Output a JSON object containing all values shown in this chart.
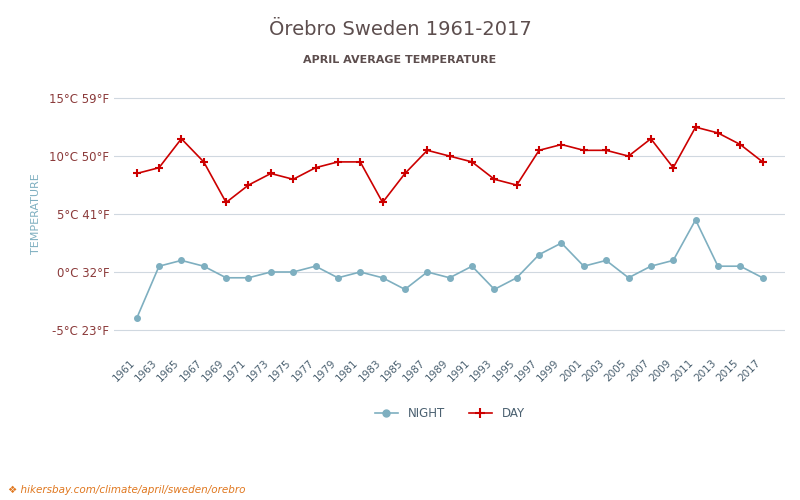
{
  "title": "Örebro Sweden 1961-2017",
  "subtitle": "APRIL AVERAGE TEMPERATURE",
  "ylabel": "TEMPERATURE",
  "xlabel_url": "hikersbay.com/climate/april/sweden/orebro",
  "years": [
    1961,
    1963,
    1965,
    1967,
    1969,
    1971,
    1973,
    1975,
    1977,
    1979,
    1981,
    1983,
    1985,
    1987,
    1989,
    1991,
    1993,
    1995,
    1997,
    1999,
    2001,
    2003,
    2005,
    2007,
    2009,
    2011,
    2013,
    2015,
    2017
  ],
  "day_temps": [
    8.5,
    9.0,
    11.5,
    9.5,
    6.0,
    7.5,
    8.5,
    8.0,
    9.0,
    9.5,
    9.5,
    6.0,
    8.5,
    10.5,
    10.0,
    9.5,
    8.0,
    7.5,
    10.5,
    11.0,
    10.5,
    10.5,
    10.0,
    11.5,
    9.0,
    12.5,
    12.0,
    11.0,
    9.5
  ],
  "night_temps": [
    -4.0,
    0.5,
    1.0,
    0.5,
    -0.5,
    -0.5,
    0.0,
    0.0,
    0.5,
    -0.5,
    0.0,
    -0.5,
    -1.5,
    0.0,
    -0.5,
    0.5,
    -1.5,
    -0.5,
    1.5,
    2.5,
    0.5,
    1.0,
    -0.5,
    0.5,
    1.0,
    4.5,
    0.5,
    0.5,
    -0.5
  ],
  "day_color": "#cc0000",
  "night_color": "#7eafc0",
  "title_color": "#5d4e4e",
  "subtitle_color": "#5d4e4e",
  "ylabel_color": "#7eafc0",
  "tick_label_color": "#8b3a3a",
  "grid_color": "#d0d8e0",
  "background_color": "#ffffff",
  "ylim": [
    -7,
    17
  ],
  "yticks": [
    -5,
    0,
    5,
    10,
    15
  ],
  "ytick_labels": [
    "-5°C 23°F",
    "0°C 32°F",
    "5°C 41°F",
    "10°C 50°F",
    "15°C 59°F"
  ],
  "legend_night": "NIGHT",
  "legend_day": "DAY"
}
